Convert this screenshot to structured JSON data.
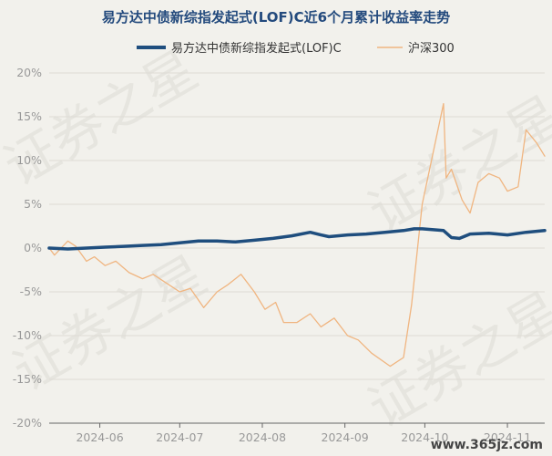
{
  "watermark": {
    "text": "证券之星",
    "url": "www.365jz.com"
  },
  "chart_data": {
    "type": "line",
    "title": "易方达中债新综指发起式(LOF)C近6个月累计收益率走势",
    "xlabel": "",
    "ylabel": "",
    "ylim": [
      -20,
      20
    ],
    "y_ticks": [
      "20%",
      "15%",
      "10%",
      "5%",
      "0%",
      "-5%",
      "-10%",
      "-15%",
      "-20%"
    ],
    "y_tick_values": [
      20,
      15,
      10,
      5,
      0,
      -5,
      -10,
      -15,
      -20
    ],
    "x_ticks": [
      "2024-06",
      "2024-07",
      "2024-08",
      "2024-09",
      "2024-10",
      "2024-11"
    ],
    "x_tick_dates": [
      "2024-06-01",
      "2024-07-01",
      "2024-08-01",
      "2024-09-01",
      "2024-10-01",
      "2024-11-01"
    ],
    "x_range": [
      "2024-05-13",
      "2024-11-15"
    ],
    "grid": true,
    "legend_position": "top",
    "series": [
      {
        "name": "易方达中债新综指发起式(LOF)C",
        "color": "#1f4e7e",
        "line_width": "thick",
        "points": [
          [
            "2024-05-13",
            0.0
          ],
          [
            "2024-05-20",
            -0.1
          ],
          [
            "2024-05-27",
            0.0
          ],
          [
            "2024-06-03",
            0.1
          ],
          [
            "2024-06-10",
            0.2
          ],
          [
            "2024-06-17",
            0.3
          ],
          [
            "2024-06-24",
            0.4
          ],
          [
            "2024-07-01",
            0.6
          ],
          [
            "2024-07-08",
            0.8
          ],
          [
            "2024-07-15",
            0.8
          ],
          [
            "2024-07-22",
            0.7
          ],
          [
            "2024-07-29",
            0.9
          ],
          [
            "2024-08-05",
            1.1
          ],
          [
            "2024-08-12",
            1.4
          ],
          [
            "2024-08-19",
            1.8
          ],
          [
            "2024-08-23",
            1.5
          ],
          [
            "2024-08-26",
            1.3
          ],
          [
            "2024-09-02",
            1.5
          ],
          [
            "2024-09-09",
            1.6
          ],
          [
            "2024-09-16",
            1.8
          ],
          [
            "2024-09-23",
            2.0
          ],
          [
            "2024-09-27",
            2.2
          ],
          [
            "2024-09-30",
            2.2
          ],
          [
            "2024-10-08",
            2.0
          ],
          [
            "2024-10-11",
            1.2
          ],
          [
            "2024-10-14",
            1.1
          ],
          [
            "2024-10-18",
            1.6
          ],
          [
            "2024-10-25",
            1.7
          ],
          [
            "2024-11-01",
            1.5
          ],
          [
            "2024-11-08",
            1.8
          ],
          [
            "2024-11-15",
            2.0
          ]
        ]
      },
      {
        "name": "沪深300",
        "color": "#f0b580",
        "line_width": "thin",
        "points": [
          [
            "2024-05-13",
            0.0
          ],
          [
            "2024-05-15",
            -0.8
          ],
          [
            "2024-05-20",
            0.8
          ],
          [
            "2024-05-23",
            0.2
          ],
          [
            "2024-05-27",
            -1.5
          ],
          [
            "2024-05-30",
            -1.0
          ],
          [
            "2024-06-03",
            -2.0
          ],
          [
            "2024-06-07",
            -1.5
          ],
          [
            "2024-06-12",
            -2.8
          ],
          [
            "2024-06-17",
            -3.5
          ],
          [
            "2024-06-21",
            -3.0
          ],
          [
            "2024-06-26",
            -4.0
          ],
          [
            "2024-07-01",
            -5.0
          ],
          [
            "2024-07-05",
            -4.6
          ],
          [
            "2024-07-10",
            -6.8
          ],
          [
            "2024-07-15",
            -5.0
          ],
          [
            "2024-07-19",
            -4.2
          ],
          [
            "2024-07-24",
            -3.0
          ],
          [
            "2024-07-29",
            -5.0
          ],
          [
            "2024-08-02",
            -7.0
          ],
          [
            "2024-08-06",
            -6.2
          ],
          [
            "2024-08-09",
            -8.5
          ],
          [
            "2024-08-14",
            -8.5
          ],
          [
            "2024-08-19",
            -7.5
          ],
          [
            "2024-08-23",
            -9.0
          ],
          [
            "2024-08-28",
            -8.0
          ],
          [
            "2024-09-02",
            -10.0
          ],
          [
            "2024-09-06",
            -10.5
          ],
          [
            "2024-09-11",
            -12.0
          ],
          [
            "2024-09-18",
            -13.5
          ],
          [
            "2024-09-23",
            -12.5
          ],
          [
            "2024-09-26",
            -6.5
          ],
          [
            "2024-09-30",
            5.0
          ],
          [
            "2024-10-08",
            16.5
          ],
          [
            "2024-10-09",
            8.0
          ],
          [
            "2024-10-11",
            9.0
          ],
          [
            "2024-10-15",
            5.5
          ],
          [
            "2024-10-18",
            4.0
          ],
          [
            "2024-10-21",
            7.5
          ],
          [
            "2024-10-25",
            8.5
          ],
          [
            "2024-10-29",
            8.0
          ],
          [
            "2024-11-01",
            6.5
          ],
          [
            "2024-11-05",
            7.0
          ],
          [
            "2024-11-08",
            13.5
          ],
          [
            "2024-11-12",
            12.0
          ],
          [
            "2024-11-15",
            10.5
          ]
        ]
      }
    ]
  }
}
